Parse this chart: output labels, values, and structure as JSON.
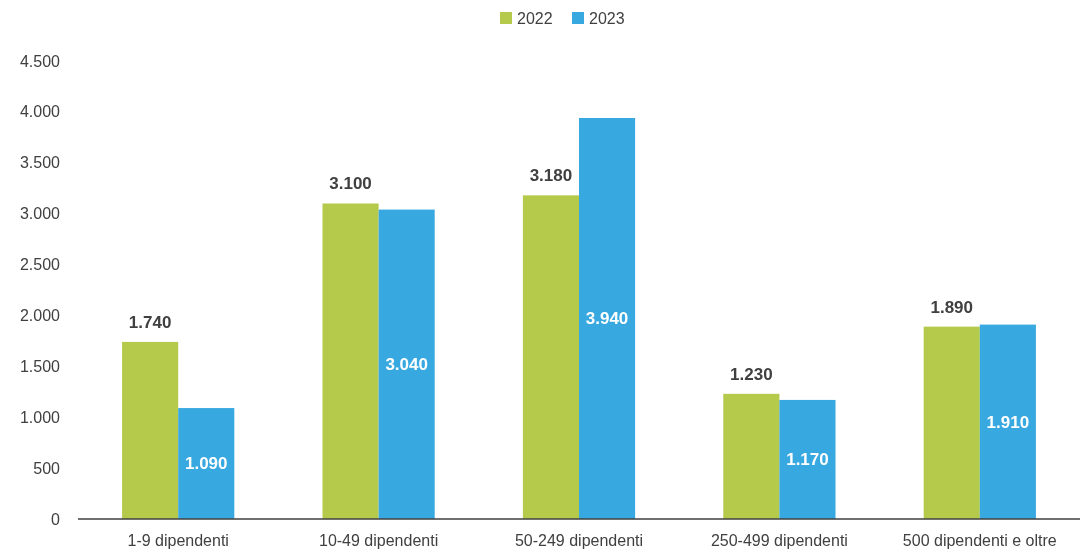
{
  "chart_data": {
    "type": "bar",
    "categories": [
      "1-9 dipendenti",
      "10-49 dipendenti",
      "50-249 dipendenti",
      "250-499 dipendenti",
      "500 dipendenti e oltre"
    ],
    "series": [
      {
        "name": "2022",
        "color": "#b5c94a",
        "values": [
          1740,
          3100,
          3180,
          1230,
          1890
        ],
        "value_labels": [
          "1.740",
          "3.100",
          "3.180",
          "1.230",
          "1.890"
        ]
      },
      {
        "name": "2023",
        "color": "#38a8e0",
        "values": [
          1090,
          3040,
          3940,
          1170,
          1910
        ],
        "value_labels": [
          "1.090",
          "3.040",
          "3.940",
          "1.170",
          "1.910"
        ]
      }
    ],
    "ylim": [
      0,
      4500
    ],
    "yticks": [
      {
        "value": 0,
        "label": "0"
      },
      {
        "value": 500,
        "label": "500"
      },
      {
        "value": 1000,
        "label": "1.000"
      },
      {
        "value": 1500,
        "label": "1.500"
      },
      {
        "value": 2000,
        "label": "2.000"
      },
      {
        "value": 2500,
        "label": "2.500"
      },
      {
        "value": 3000,
        "label": "3.000"
      },
      {
        "value": 3500,
        "label": "3.500"
      },
      {
        "value": 4000,
        "label": "4.000"
      },
      {
        "value": 4500,
        "label": "4.500"
      }
    ],
    "legend": "top"
  }
}
